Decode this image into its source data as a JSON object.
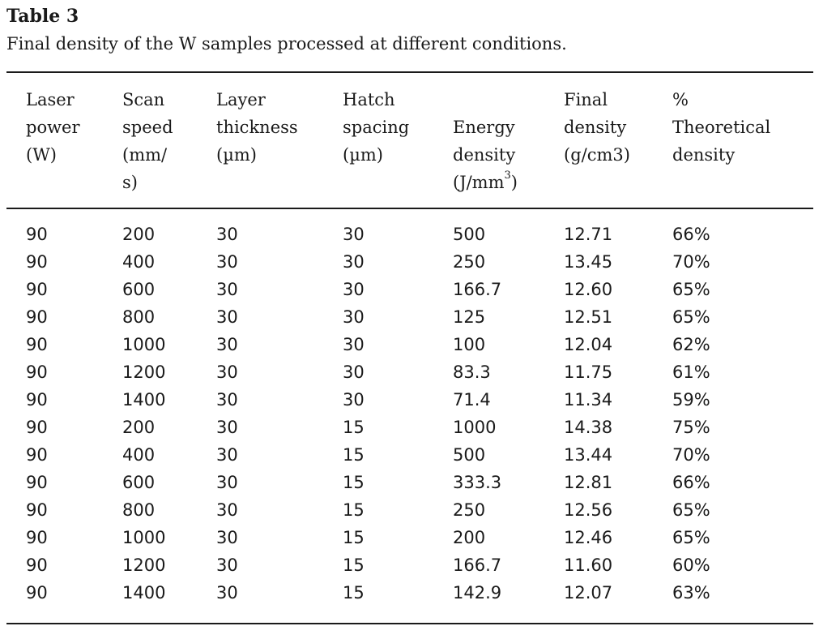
{
  "table": {
    "label": "Table 3",
    "caption": "Final density of the W samples processed at different conditions.",
    "headers": [
      "Laser\npower\n(W)",
      "Scan\nspeed\n(mm/\ns)",
      "Layer\nthickness\n(µm)",
      "Hatch\nspacing\n(µm)",
      "Energy\ndensity",
      "Final\ndensity\n(g/cm3)",
      "%\nTheoretical\ndensity"
    ],
    "energy_unit_prefix": "(J/mm",
    "energy_unit_sup": "3",
    "energy_unit_suffix": ")",
    "rows": [
      [
        "90",
        "200",
        "30",
        "30",
        "500",
        "12.71",
        "66%"
      ],
      [
        "90",
        "400",
        "30",
        "30",
        "250",
        "13.45",
        "70%"
      ],
      [
        "90",
        "600",
        "30",
        "30",
        "166.7",
        "12.60",
        "65%"
      ],
      [
        "90",
        "800",
        "30",
        "30",
        "125",
        "12.51",
        "65%"
      ],
      [
        "90",
        "1000",
        "30",
        "30",
        "100",
        "12.04",
        "62%"
      ],
      [
        "90",
        "1200",
        "30",
        "30",
        "83.3",
        "11.75",
        "61%"
      ],
      [
        "90",
        "1400",
        "30",
        "30",
        "71.4",
        "11.34",
        "59%"
      ],
      [
        "90",
        "200",
        "30",
        "15",
        "1000",
        "14.38",
        "75%"
      ],
      [
        "90",
        "400",
        "30",
        "15",
        "500",
        "13.44",
        "70%"
      ],
      [
        "90",
        "600",
        "30",
        "15",
        "333.3",
        "12.81",
        "66%"
      ],
      [
        "90",
        "800",
        "30",
        "15",
        "250",
        "12.56",
        "65%"
      ],
      [
        "90",
        "1000",
        "30",
        "15",
        "200",
        "12.46",
        "65%"
      ],
      [
        "90",
        "1200",
        "30",
        "15",
        "166.7",
        "11.60",
        "60%"
      ],
      [
        "90",
        "1400",
        "30",
        "15",
        "142.9",
        "12.07",
        "63%"
      ]
    ]
  }
}
